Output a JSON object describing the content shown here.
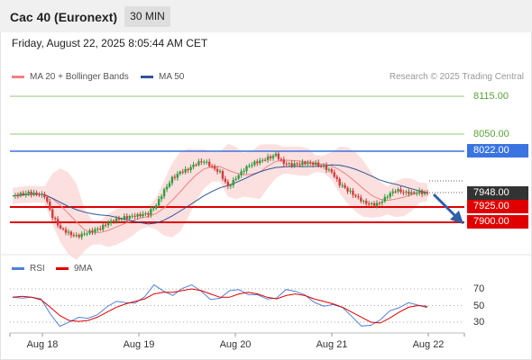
{
  "header": {
    "title": "Cac 40 (Euronext)",
    "timeframe": "30 MIN"
  },
  "timestamp": "Friday, August 22, 2025 8:05:44 AM CET",
  "legend": {
    "ma20_label": "MA 20 + Bollinger Bands",
    "ma50_label": "MA 50",
    "copyright": "Research © 2025 Trading Central"
  },
  "rsi_legend": {
    "rsi_label": "RSI",
    "ma_label": "9MA"
  },
  "price_levels": {
    "r2": "8115.00",
    "r1": "8050.00",
    "pivot": "8022.00",
    "current": "7948.00",
    "s1": "7925.00",
    "s2": "7900.00"
  },
  "rsi_ticks": [
    "70",
    "50",
    "30"
  ],
  "x_axis": [
    "Aug 18",
    "Aug 19",
    "Aug 20",
    "Aug 21",
    "Aug 22"
  ],
  "colors": {
    "ma20": "#f08080",
    "ma50": "#2f5597",
    "resistance": "#90c978",
    "pivot": "#3a74e0",
    "support": "#e00000",
    "current": "#333333",
    "rsi": "#4f81d6",
    "rsi_ma": "#e00000",
    "up_candle": "#2e9e3e",
    "down_candle": "#d33b3b",
    "band_fill": "#fbd6d6",
    "arrow": "#2f5fa8"
  },
  "chart_data": {
    "type": "candlestick",
    "x": [
      "Aug 18",
      "Aug 19",
      "Aug 20",
      "Aug 21",
      "Aug 22"
    ],
    "ylabel": "",
    "levels": [
      8115.0,
      8050.0,
      8022.0,
      7948.0,
      7925.0,
      7900.0
    ],
    "close_path": [
      7945,
      7948,
      7950,
      7948,
      7945,
      7910,
      7890,
      7882,
      7876,
      7880,
      7885,
      7890,
      7900,
      7905,
      7908,
      7910,
      7912,
      7915,
      7930,
      7955,
      7975,
      7985,
      7990,
      8000,
      8005,
      7995,
      7985,
      7960,
      7975,
      7990,
      8000,
      8005,
      8010,
      8015,
      8000,
      7998,
      8000,
      8002,
      8000,
      7995,
      7985,
      7965,
      7955,
      7945,
      7935,
      7930,
      7932,
      7945,
      7955,
      7952,
      7950,
      7952,
      7948
    ],
    "rsi": {
      "ticks": [
        70,
        50,
        30
      ],
      "rsi_path": [
        60,
        62,
        60,
        55,
        40,
        28,
        30,
        33,
        35,
        42,
        48,
        52,
        54,
        56,
        60,
        72,
        68,
        65,
        70,
        72,
        68,
        60,
        58,
        65,
        70,
        66,
        62,
        55,
        60,
        72,
        66,
        60,
        55,
        52,
        50,
        45,
        38,
        28,
        25,
        30,
        45,
        50,
        52,
        48,
        49
      ],
      "ma_path": [
        60,
        61,
        60,
        57,
        48,
        38,
        32,
        31,
        32,
        36,
        42,
        48,
        52,
        55,
        58,
        64,
        66,
        66,
        68,
        70,
        68,
        64,
        60,
        60,
        64,
        66,
        64,
        60,
        58,
        62,
        64,
        62,
        58,
        55,
        52,
        48,
        42,
        36,
        30,
        29,
        35,
        42,
        48,
        50,
        49
      ]
    }
  }
}
